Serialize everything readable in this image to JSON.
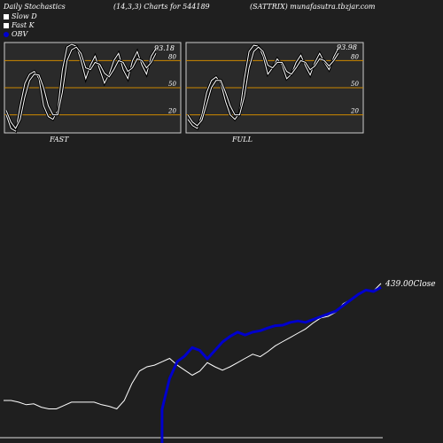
{
  "header": {
    "title": "Daily Stochastics",
    "params": "(14,3,3) Charts for 544189",
    "site": "(SATTRIX) munafasutra.tbzjar.com"
  },
  "legend": [
    {
      "label": "Slow D",
      "color": "#ffffff"
    },
    {
      "label": "Fast K",
      "color": "#ffffff"
    },
    {
      "label": "OBV",
      "color": "#0000cc"
    }
  ],
  "panels": {
    "fast_label": "FAST",
    "full_label": "FULL"
  },
  "colors": {
    "background": "#1f1f1f",
    "panel_bg": "#2a2a2a",
    "level_line": "#cc8800",
    "stoch_line": "#ffffff",
    "obv": "#0000cc",
    "price": "#ffffff"
  },
  "chart_data": [
    {
      "type": "line",
      "name": "fast-stochastic",
      "ylim": [
        0,
        100
      ],
      "levels": [
        20,
        50,
        80
      ],
      "level_labels": [
        "20",
        "50",
        "80"
      ],
      "last_value": "93.18",
      "series": [
        {
          "name": "Fast K",
          "values": [
            20,
            5,
            2,
            30,
            55,
            65,
            68,
            60,
            30,
            18,
            15,
            25,
            70,
            95,
            98,
            96,
            80,
            60,
            75,
            85,
            70,
            55,
            65,
            80,
            88,
            70,
            60,
            80,
            90,
            75,
            65,
            85,
            93.18
          ]
        },
        {
          "name": "Slow D",
          "values": [
            25,
            12,
            5,
            15,
            40,
            58,
            65,
            64,
            50,
            30,
            20,
            20,
            45,
            80,
            92,
            95,
            88,
            72,
            70,
            78,
            76,
            66,
            62,
            70,
            80,
            78,
            68,
            72,
            82,
            80,
            72,
            78,
            88
          ]
        }
      ]
    },
    {
      "type": "line",
      "name": "full-stochastic",
      "ylim": [
        0,
        100
      ],
      "levels": [
        20,
        50,
        80
      ],
      "level_labels": [
        "20",
        "50",
        "80"
      ],
      "last_value": "93.98",
      "series": [
        {
          "name": "Fast K",
          "values": [
            15,
            8,
            5,
            20,
            45,
            58,
            62,
            55,
            35,
            20,
            15,
            22,
            60,
            90,
            97,
            96,
            85,
            65,
            72,
            82,
            75,
            60,
            65,
            78,
            86,
            74,
            64,
            78,
            88,
            78,
            70,
            84,
            93.98
          ]
        },
        {
          "name": "Slow D",
          "values": [
            20,
            12,
            8,
            14,
            32,
            50,
            58,
            58,
            45,
            30,
            20,
            20,
            40,
            72,
            90,
            95,
            90,
            75,
            72,
            78,
            78,
            68,
            65,
            72,
            80,
            78,
            70,
            74,
            82,
            80,
            74,
            80,
            88
          ]
        }
      ]
    },
    {
      "type": "line",
      "name": "price-obv",
      "close_label": "439.00Close",
      "series": [
        {
          "name": "Close",
          "values": [
            300,
            300,
            298,
            295,
            296,
            292,
            290,
            290,
            294,
            298,
            298,
            298,
            298,
            295,
            293,
            290,
            300,
            320,
            335,
            340,
            342,
            346,
            350,
            342,
            336,
            330,
            335,
            345,
            340,
            336,
            340,
            345,
            350,
            355,
            352,
            358,
            365,
            370,
            375,
            380,
            385,
            392,
            398,
            400,
            405,
            415,
            420,
            426,
            432,
            430,
            439
          ]
        },
        {
          "name": "OBV",
          "values": [
            null,
            null,
            null,
            null,
            null,
            null,
            null,
            null,
            null,
            null,
            null,
            null,
            null,
            null,
            null,
            null,
            null,
            null,
            null,
            null,
            null,
            120,
            230,
            290,
            310,
            340,
            330,
            300,
            330,
            360,
            380,
            395,
            385,
            395,
            400,
            410,
            418,
            420,
            430,
            435,
            430,
            440,
            450,
            460,
            470,
            490,
            510,
            530,
            545,
            540,
            555
          ]
        }
      ]
    }
  ]
}
